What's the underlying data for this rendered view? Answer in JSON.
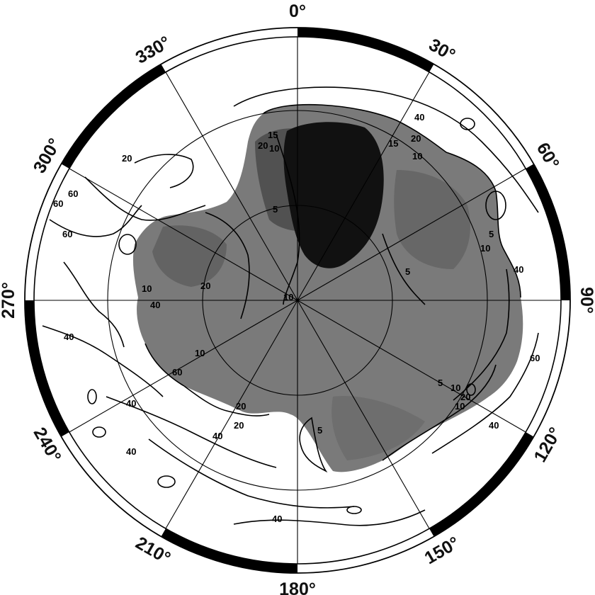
{
  "map": {
    "projection": "south-polar-stereographic",
    "colors": {
      "ink": "#000000",
      "land": "#777777",
      "land_dark": "#101010",
      "ocean": "#ffffff"
    },
    "frame": {
      "band_pattern": "alternating-black-white-30deg"
    },
    "longitude_labels": [
      {
        "lon": 0,
        "text": "0°"
      },
      {
        "lon": 30,
        "text": "30°"
      },
      {
        "lon": 60,
        "text": "60°"
      },
      {
        "lon": 90,
        "text": "90°"
      },
      {
        "lon": 120,
        "text": "120°"
      },
      {
        "lon": 150,
        "text": "150°"
      },
      {
        "lon": 180,
        "text": "180°"
      },
      {
        "lon": 210,
        "text": "210°"
      },
      {
        "lon": 240,
        "text": "240°"
      },
      {
        "lon": 270,
        "text": "270°"
      },
      {
        "lon": 300,
        "text": "300°"
      },
      {
        "lon": 330,
        "text": "330°"
      }
    ],
    "contour_labels": [
      "10",
      "20",
      "40",
      "60",
      "5",
      "10",
      "5",
      "20",
      "40",
      "60",
      "40",
      "20",
      "10",
      "60",
      "40",
      "40",
      "5",
      "40",
      "20",
      "10",
      "5",
      "40",
      "60",
      "20",
      "15",
      "10",
      "5",
      "10",
      "40",
      "40",
      "20",
      "20",
      "10",
      "15",
      "10",
      "60"
    ]
  }
}
